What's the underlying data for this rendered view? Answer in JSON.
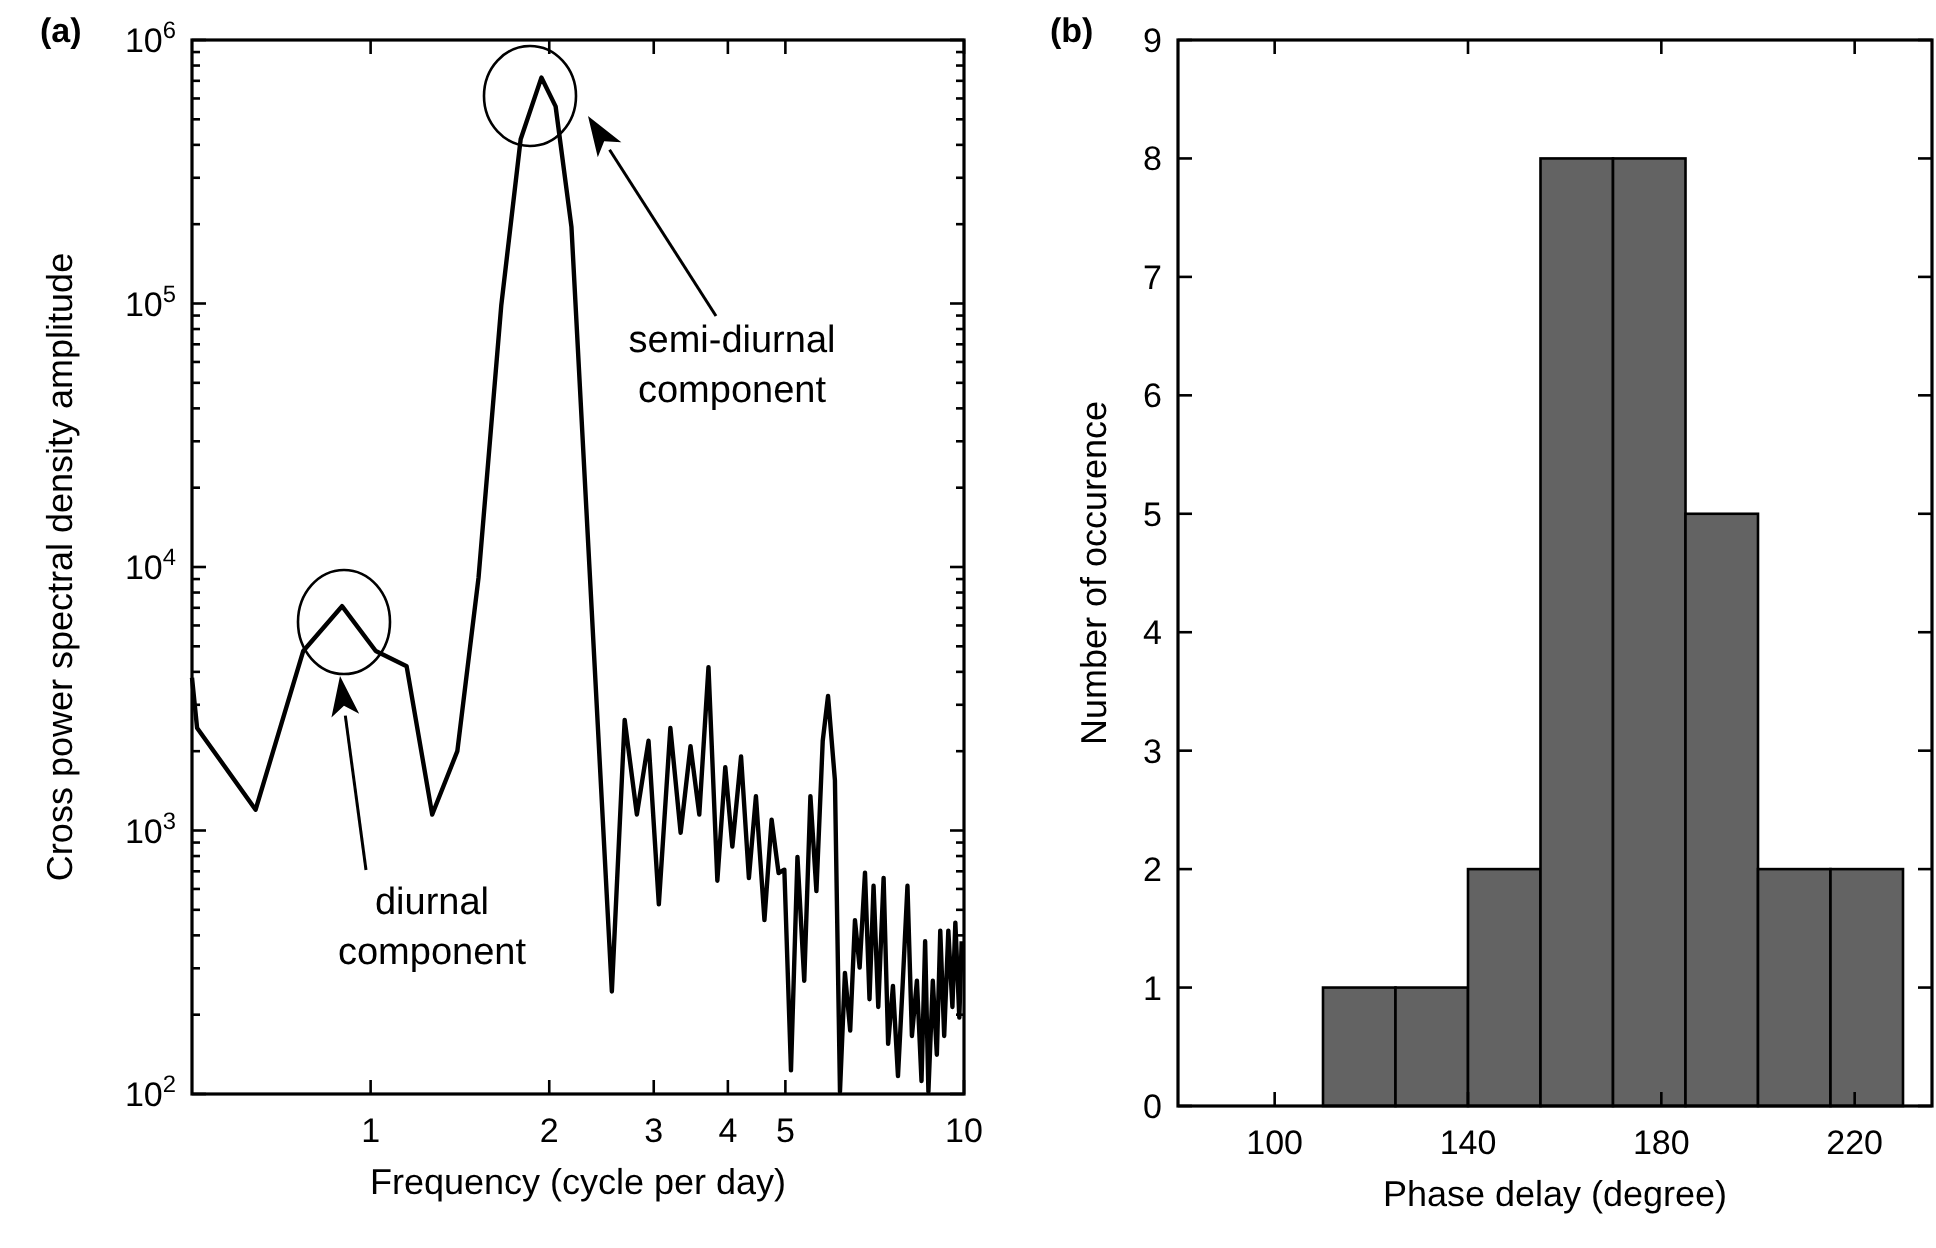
{
  "chart_data": [
    {
      "type": "line",
      "title": "(a)",
      "xlabel": "Frequency (cycle per day)",
      "ylabel": "Cross power spectral density amplitude",
      "log": "xy",
      "xlim": [
        0.5,
        10
      ],
      "ylim": [
        100,
        1000000
      ],
      "xticks": [
        1,
        2,
        3,
        4,
        5,
        10
      ],
      "yticks": [
        {
          "value": 100,
          "label": "10$^{2}$"
        },
        {
          "value": 200,
          "label": null
        },
        {
          "value": 300,
          "label": null
        },
        {
          "value": 400,
          "label": null
        },
        {
          "value": 500,
          "label": null
        },
        {
          "value": 600,
          "label": null
        },
        {
          "value": 700,
          "label": null
        },
        {
          "value": 800,
          "label": null
        },
        {
          "value": 900,
          "label": null
        },
        {
          "value": 1000,
          "label": "10$^{3}$"
        },
        {
          "value": 2000,
          "label": null
        },
        {
          "value": 3000,
          "label": null
        },
        {
          "value": 4000,
          "label": null
        },
        {
          "value": 5000,
          "label": null
        },
        {
          "value": 6000,
          "label": null
        },
        {
          "value": 7000,
          "label": null
        },
        {
          "value": 8000,
          "label": null
        },
        {
          "value": 9000,
          "label": null
        },
        {
          "value": 10000,
          "label": "10$^{4}$"
        },
        {
          "value": 20000,
          "label": null
        },
        {
          "value": 30000,
          "label": null
        },
        {
          "value": 40000,
          "label": null
        },
        {
          "value": 50000,
          "label": null
        },
        {
          "value": 60000,
          "label": null
        },
        {
          "value": 70000,
          "label": null
        },
        {
          "value": 80000,
          "label": null
        },
        {
          "value": 90000,
          "label": null
        },
        {
          "value": 100000,
          "label": "10$^{5}$"
        },
        {
          "value": 200000,
          "label": null
        },
        {
          "value": 300000,
          "label": null
        },
        {
          "value": 400000,
          "label": null
        },
        {
          "value": 500000,
          "label": null
        },
        {
          "value": 600000,
          "label": null
        },
        {
          "value": 700000,
          "label": null
        },
        {
          "value": 800000,
          "label": null
        },
        {
          "value": 900000,
          "label": null
        },
        {
          "value": 1000000,
          "label": "10$^{6}$"
        }
      ],
      "series": [
        {
          "color": "#000000",
          "x": [
            0.5,
            0.51,
            0.64,
            0.77,
            0.895,
            1.02,
            1.15,
            1.27,
            1.4,
            1.52,
            1.66,
            1.79,
            1.94,
            2.05,
            2.18,
            2.55,
            2.68,
            2.81,
            2.94,
            3.06,
            3.2,
            3.33,
            3.46,
            3.58,
            3.71,
            3.84,
            3.96,
            4.07,
            4.21,
            4.34,
            4.46,
            4.61,
            4.74,
            4.87,
            4.98,
            5.11,
            5.24,
            5.38,
            5.51,
            5.64,
            5.78,
            5.9,
            6.06,
            6.18,
            6.3,
            6.43,
            6.55,
            6.67,
            6.81,
            6.93,
            7.04,
            7.17,
            7.32,
            7.45,
            7.59,
            7.74,
            7.88,
            8.03,
            8.17,
            8.33,
            8.48,
            8.6,
            8.71,
            8.86,
            9.0,
            9.12,
            9.26,
            9.41,
            9.56,
            9.67,
            9.82,
            9.91
          ],
          "values": [
            3800,
            2450,
            1200,
            4800,
            7100,
            4800,
            4200,
            1150,
            2000,
            9100,
            98000,
            420000,
            720000,
            560000,
            195000,
            245,
            2630,
            1150,
            2190,
            525,
            2450,
            980,
            2090,
            1150,
            4170,
            645,
            1740,
            870,
            1910,
            660,
            1350,
            457,
            1100,
            690,
            710,
            123,
            794,
            269,
            1350,
            589,
            2190,
            3240,
            1550,
            102,
            288,
            174,
            457,
            302,
            692,
            229,
            617,
            214,
            661,
            155,
            257,
            117,
            257,
            617,
            166,
            269,
            112,
            380,
            102,
            269,
            141,
            417,
            166,
            417,
            214,
            447,
            195,
            380
          ]
        }
      ],
      "annotations": [
        "diurnal component",
        "semi-diurnal component"
      ]
    },
    {
      "type": "histogram",
      "title": "(b)",
      "xlabel": "Phase delay (degree)",
      "ylabel": "Number of occurence",
      "xlim": [
        80,
        236
      ],
      "ylim": [
        0,
        9
      ],
      "xticks": [
        100,
        140,
        180,
        220
      ],
      "yticks": [
        0,
        1,
        2,
        3,
        4,
        5,
        6,
        7,
        8,
        9
      ],
      "color": "#636363",
      "bins": [
        110,
        125,
        140,
        155,
        170,
        185,
        200,
        215,
        230
      ],
      "values": [
        1,
        1,
        2,
        8,
        8,
        5,
        2,
        2
      ]
    }
  ]
}
